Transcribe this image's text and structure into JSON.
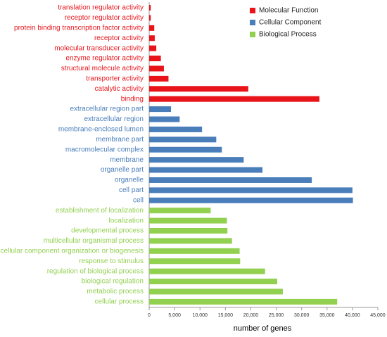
{
  "chart_data": {
    "type": "bar",
    "orientation": "horizontal",
    "x_label": "number of genes",
    "xlim": [
      0,
      45000
    ],
    "xticks": [
      0,
      {
        "value": 5000,
        "label": "5,000"
      },
      {
        "value": 10000,
        "label": "10,000"
      },
      {
        "value": 15000,
        "label": "15,000"
      },
      {
        "value": 20000,
        "label": "20,000"
      },
      {
        "value": 25000,
        "label": "25,000"
      },
      {
        "value": 30000,
        "label": "30,000"
      },
      {
        "value": 35000,
        "label": "35,000"
      },
      {
        "value": 40000,
        "label": "40,000"
      },
      {
        "value": 45000,
        "label": "45,000"
      }
    ],
    "legend": "upper right",
    "series": [
      {
        "name": "Molecular Function",
        "color": "#e8141a",
        "categories": [
          "translation regulator activity",
          "receptor regulator activity",
          "protein binding transcription factor activity",
          "receptor activity",
          "molecular transducer activity",
          "enzyme regulator activity",
          "structural molecule activity",
          "transporter activity",
          "catalytic activity",
          "binding"
        ],
        "values": [
          300,
          300,
          1000,
          1100,
          1400,
          2300,
          2900,
          3800,
          19500,
          33500
        ]
      },
      {
        "name": "Cellular Component",
        "color": "#4a7ebb",
        "categories": [
          "extracellular region part",
          "extracellular region",
          "membrane-enclosed lumen",
          "membrane part",
          "macromolecular complex",
          "membrane",
          "organelle part",
          "organelle",
          "cell part",
          "cell"
        ],
        "values": [
          4300,
          6000,
          10400,
          13200,
          14300,
          18600,
          22300,
          32000,
          40000,
          40100
        ]
      },
      {
        "name": "Biological Process",
        "color": "#92d050",
        "categories": [
          "establishment of localization",
          "localization",
          "developmental process",
          "multicellular organismal process",
          "cellular component organization or biogenesis",
          "response to stimulus",
          "regulation of biological process",
          "biological regulation",
          "metabolic process",
          "cellular process"
        ],
        "values": [
          12100,
          15300,
          15400,
          16300,
          17800,
          17900,
          22800,
          25200,
          26300,
          37000
        ]
      }
    ]
  }
}
